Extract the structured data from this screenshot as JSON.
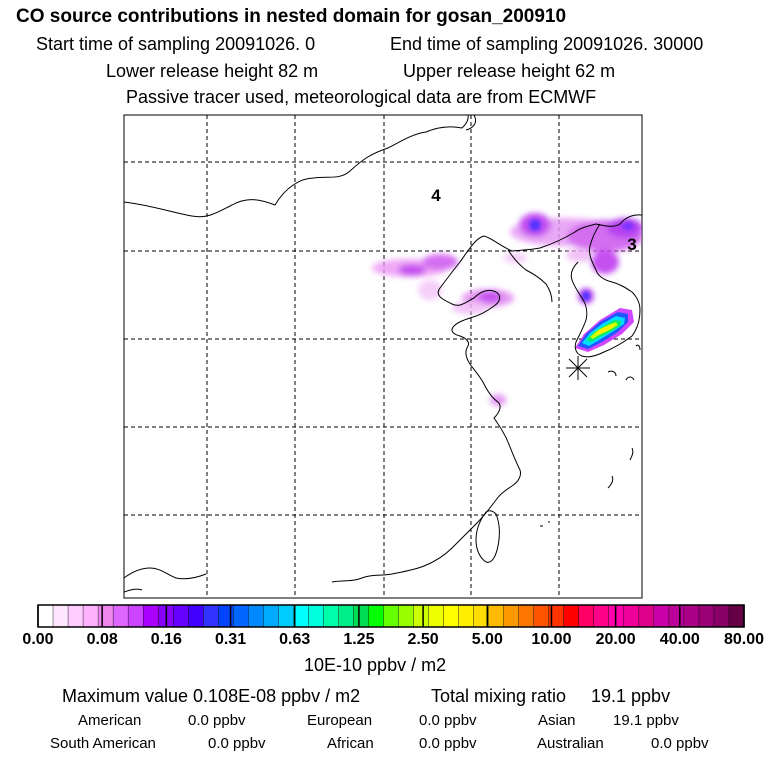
{
  "header": {
    "title": "CO  source contributions in nested domain for gosan_200910",
    "start_sampling": "Start time of sampling 20091026.     0",
    "end_sampling": "End time of sampling 20091026. 30000",
    "lower_release": "Lower release height   82 m",
    "upper_release": "Upper release height   62 m",
    "tracer_note": "Passive tracer used, meteorological data are from ECMWF"
  },
  "map": {
    "labels": {
      "label_4": "4",
      "label_3": "3"
    }
  },
  "colorbar": {
    "ticks": [
      "0.00",
      "0.08",
      "0.16",
      "0.31",
      "0.63",
      "1.25",
      "2.50",
      "5.00",
      "10.00",
      "20.00",
      "40.00",
      "80.00"
    ],
    "units": "10E-10 ppbv / m2",
    "colors": [
      "#ffffff",
      "#ffe6ff",
      "#ffccff",
      "#ffb3ff",
      "#ee88ee",
      "#dd66ff",
      "#cc44ff",
      "#aa00ff",
      "#8800ff",
      "#6600ff",
      "#4400ff",
      "#3333ff",
      "#0044ff",
      "#0066ff",
      "#0088ff",
      "#00aaff",
      "#00ccff",
      "#00ffff",
      "#00ffdd",
      "#00ffaa",
      "#00ee88",
      "#00dd55",
      "#00ff00",
      "#66ff00",
      "#99ff00",
      "#ccff00",
      "#eeff00",
      "#ffff00",
      "#ffee00",
      "#ffdd00",
      "#ffbb00",
      "#ff9900",
      "#ff7700",
      "#ff5500",
      "#ff3300",
      "#ff0000",
      "#ff0066",
      "#ff0088",
      "#ff00aa",
      "#ee0099",
      "#dd0088",
      "#cc00aa",
      "#bb0099",
      "#aa0088",
      "#990077",
      "#880066",
      "#660044"
    ]
  },
  "summary": {
    "max_value": "Maximum value  0.108E-08 ppbv / m2",
    "total_mixing_label": "Total mixing ratio",
    "total_mixing_value": "19.1 ppbv",
    "american": {
      "label": "American",
      "value": "0.0 ppbv"
    },
    "european": {
      "label": "European",
      "value": "0.0 ppbv"
    },
    "asian": {
      "label": "Asian",
      "value": "19.1 ppbv"
    },
    "south_american": {
      "label": "South American",
      "value": "0.0 ppbv"
    },
    "african": {
      "label": "African",
      "value": "0.0 ppbv"
    },
    "australian": {
      "label": "Australian",
      "value": "0.0 ppbv"
    }
  }
}
